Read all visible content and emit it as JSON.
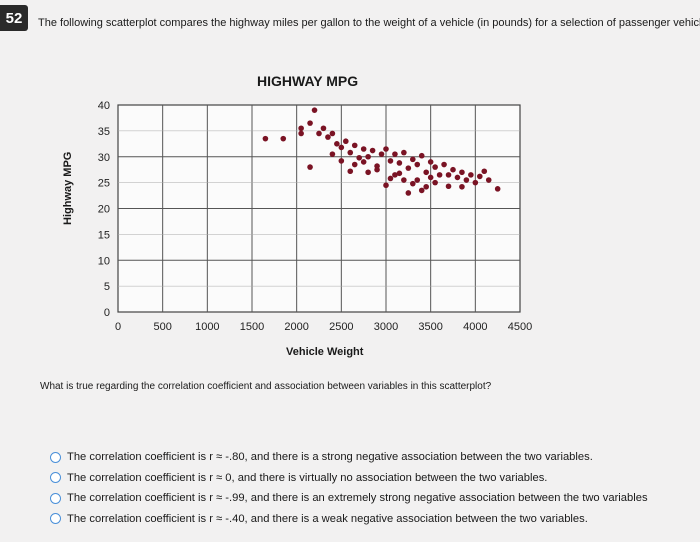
{
  "question_number": "52",
  "prompt": "The following scatterplot compares the highway miles per gallon to the weight of a vehicle (in pounds) for a selection of passenger vehicles",
  "question": "What is true regarding the correlation coefficient and association between variables in this scatterplot?",
  "options": [
    "The correlation coefficient is r ≈ -.80, and there is a strong negative association between the two variables.",
    "The correlation coefficient is r ≈ 0, and there is virtually no association between the two variables.",
    "The correlation coefficient is r ≈ -.99, and there is an extremely strong negative association between the two variables",
    "The correlation coefficient is r ≈ -.40, and there is a weak negative association between the two variables."
  ],
  "chart_data": {
    "type": "scatter",
    "title": "HIGHWAY MPG",
    "xlabel": "Vehicle Weight",
    "ylabel": "Highway MPG",
    "xlim": [
      0,
      4500
    ],
    "ylim": [
      0,
      40
    ],
    "xticks": [
      "0",
      "500",
      "1000",
      "1500",
      "2000",
      "2500",
      "3000",
      "3500",
      "4000",
      "4500"
    ],
    "yticks": [
      "0",
      "5",
      "10",
      "15",
      "20",
      "25",
      "30",
      "35",
      "40"
    ],
    "grid": true,
    "point_color": "#7a1324",
    "points": [
      [
        1650,
        33.5
      ],
      [
        1850,
        33.5
      ],
      [
        2050,
        35.5
      ],
      [
        2050,
        34.5
      ],
      [
        2150,
        36.5
      ],
      [
        2200,
        39.0
      ],
      [
        2250,
        34.5
      ],
      [
        2300,
        35.5
      ],
      [
        2350,
        33.8
      ],
      [
        2400,
        34.5
      ],
      [
        2450,
        32.5
      ],
      [
        2500,
        31.8
      ],
      [
        2550,
        33.0
      ],
      [
        2600,
        30.8
      ],
      [
        2650,
        32.2
      ],
      [
        2700,
        29.8
      ],
      [
        2750,
        31.5
      ],
      [
        2800,
        30.0
      ],
      [
        2850,
        31.2
      ],
      [
        2900,
        28.2
      ],
      [
        2950,
        30.5
      ],
      [
        2750,
        29.0
      ],
      [
        2650,
        28.5
      ],
      [
        3000,
        31.5
      ],
      [
        3050,
        29.2
      ],
      [
        3100,
        30.5
      ],
      [
        3150,
        28.8
      ],
      [
        3200,
        30.8
      ],
      [
        3250,
        27.8
      ],
      [
        3300,
        29.5
      ],
      [
        3350,
        28.5
      ],
      [
        3400,
        30.2
      ],
      [
        3450,
        27.0
      ],
      [
        3500,
        29.0
      ],
      [
        3550,
        28.0
      ],
      [
        3600,
        26.5
      ],
      [
        3650,
        28.5
      ],
      [
        3700,
        26.5
      ],
      [
        3750,
        27.5
      ],
      [
        3800,
        26.0
      ],
      [
        3850,
        27.0
      ],
      [
        3900,
        25.5
      ],
      [
        3950,
        26.5
      ],
      [
        4000,
        25.0
      ],
      [
        4050,
        26.2
      ],
      [
        4150,
        25.5
      ],
      [
        4250,
        23.8
      ],
      [
        3100,
        26.5
      ],
      [
        3200,
        25.5
      ],
      [
        3300,
        24.8
      ],
      [
        3050,
        25.8
      ],
      [
        2900,
        27.5
      ],
      [
        2500,
        29.2
      ],
      [
        2400,
        30.5
      ],
      [
        2150,
        28.0
      ],
      [
        2600,
        27.2
      ],
      [
        3000,
        24.5
      ],
      [
        3250,
        23.0
      ],
      [
        3400,
        23.5
      ],
      [
        3550,
        25.0
      ],
      [
        3700,
        24.3
      ],
      [
        3850,
        24.2
      ],
      [
        4100,
        27.2
      ],
      [
        3500,
        26.0
      ],
      [
        3350,
        25.5
      ],
      [
        2800,
        27.0
      ],
      [
        3150,
        26.8
      ],
      [
        3450,
        24.2
      ]
    ]
  }
}
